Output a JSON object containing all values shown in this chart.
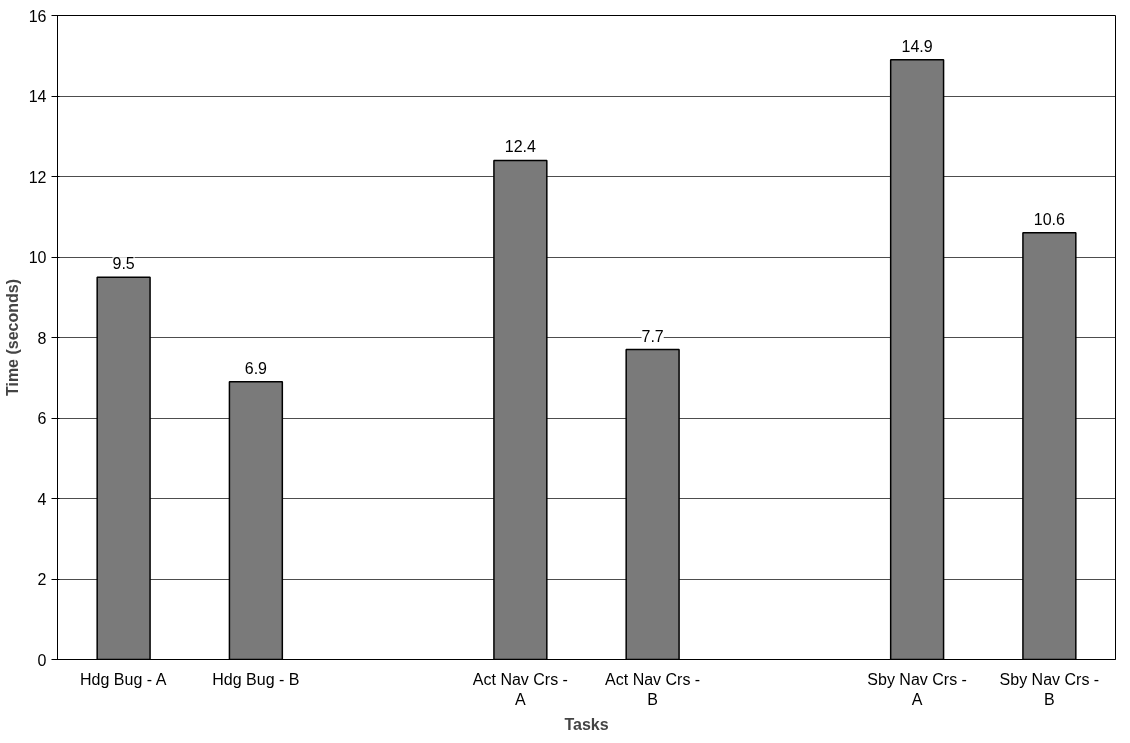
{
  "chart_data": {
    "type": "bar",
    "xlabel": "Tasks",
    "ylabel": "Time (seconds)",
    "categories": [
      "Hdg Bug - A",
      "Hdg Bug - B",
      null,
      "Act Nav Crs - A",
      "Act Nav Crs - B",
      null,
      "Sby Nav Crs - A",
      "Sby Nav Crs - B"
    ],
    "values": [
      9.5,
      6.9,
      null,
      12.4,
      7.7,
      null,
      14.9,
      10.6
    ],
    "color": "#7a7a7a",
    "ylim": [
      0,
      16
    ],
    "yticks": [
      0,
      2,
      4,
      6,
      8,
      10,
      12,
      14,
      16
    ],
    "grid": "y",
    "data_labels": true
  }
}
